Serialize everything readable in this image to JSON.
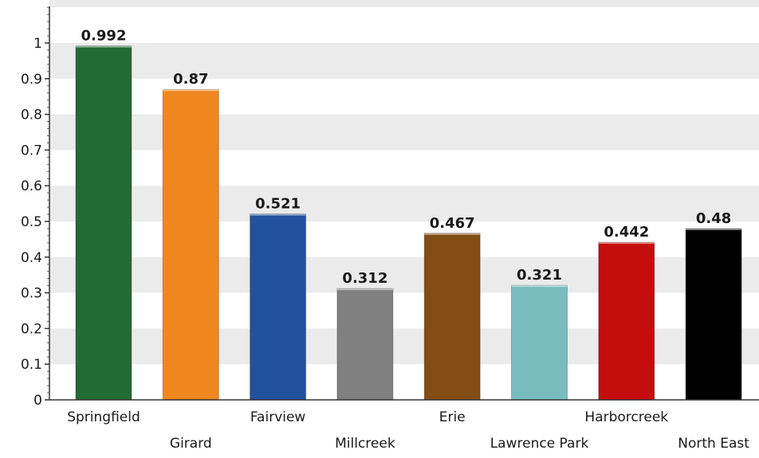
{
  "chart_data": {
    "type": "bar",
    "categories": [
      "Springfield",
      "Girard",
      "Fairview",
      "Millcreek",
      "Erie",
      "Lawrence Park",
      "Harborcreek",
      "North East"
    ],
    "values": [
      0.992,
      0.87,
      0.521,
      0.312,
      0.467,
      0.321,
      0.442,
      0.48
    ],
    "value_labels": [
      "0.992",
      "0.87",
      "0.521",
      "0.312",
      "0.467",
      "0.321",
      "0.442",
      "0.48"
    ],
    "colors": [
      "#236b35",
      "#f0871e",
      "#22529e",
      "#808080",
      "#834d16",
      "#78bcc0",
      "#c40d0d",
      "#000000"
    ],
    "ylim": [
      0,
      1
    ],
    "yticks": [
      0,
      0.1,
      0.2,
      0.3,
      0.4,
      0.5,
      0.6,
      0.7,
      0.8,
      0.9,
      1
    ],
    "ytick_labels": [
      "0",
      "0.1",
      "0.2",
      "0.3",
      "0.4",
      "0.5",
      "0.6",
      "0.7",
      "0.8",
      "0.9",
      "1"
    ],
    "grid": "horizontal alternating bands",
    "band_color": "#ebebeb",
    "title": "",
    "xlabel": "",
    "ylabel": ""
  }
}
